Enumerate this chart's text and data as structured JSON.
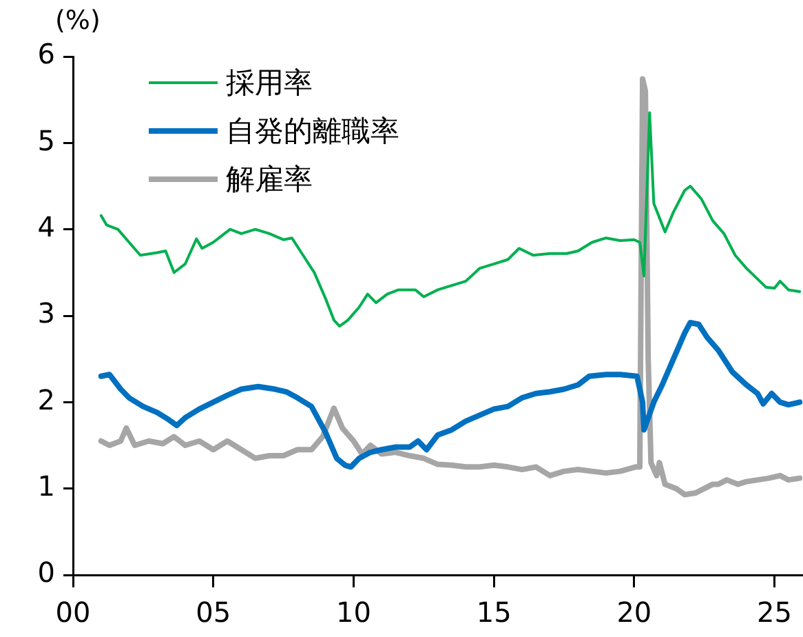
{
  "chart_data": {
    "type": "line",
    "ylabel": "(%)",
    "xlim": [
      0,
      26
    ],
    "xticks": [
      {
        "value": 0,
        "label": "00"
      },
      {
        "value": 5,
        "label": "05"
      },
      {
        "value": 10,
        "label": "10"
      },
      {
        "value": 15,
        "label": "15"
      },
      {
        "value": 20,
        "label": "20"
      },
      {
        "value": 25,
        "label": "25"
      }
    ],
    "ylim": [
      0,
      6
    ],
    "yticks": [
      0,
      1,
      2,
      3,
      4,
      5,
      6
    ],
    "grid": false,
    "legend": "top left",
    "marker": "none",
    "series": [
      {
        "name": "採用率",
        "color": "#00b050",
        "x": [
          1.0,
          1.2,
          1.6,
          2.0,
          2.4,
          3.0,
          3.3,
          3.6,
          4.0,
          4.4,
          4.6,
          5.0,
          5.2,
          5.6,
          6.0,
          6.5,
          7.0,
          7.5,
          7.8,
          8.2,
          8.6,
          9.0,
          9.3,
          9.5,
          9.8,
          10.2,
          10.5,
          10.8,
          11.2,
          11.6,
          12.2,
          12.5,
          13.0,
          13.5,
          14.0,
          14.5,
          15.0,
          15.5,
          15.9,
          16.4,
          17.0,
          17.6,
          18.0,
          18.5,
          19.0,
          19.5,
          20.0,
          20.2,
          20.35,
          20.55,
          20.7,
          21.1,
          21.4,
          21.8,
          22.0,
          22.4,
          22.8,
          23.2,
          23.6,
          24.0,
          24.7,
          25.0,
          25.2,
          25.5,
          25.9
        ],
        "values": [
          4.16,
          4.05,
          4.0,
          3.85,
          3.7,
          3.73,
          3.75,
          3.5,
          3.6,
          3.89,
          3.78,
          3.85,
          3.9,
          4.0,
          3.95,
          4.0,
          3.95,
          3.88,
          3.9,
          3.7,
          3.5,
          3.2,
          2.95,
          2.88,
          2.95,
          3.1,
          3.25,
          3.15,
          3.25,
          3.3,
          3.3,
          3.22,
          3.3,
          3.35,
          3.4,
          3.55,
          3.6,
          3.65,
          3.78,
          3.7,
          3.72,
          3.72,
          3.75,
          3.85,
          3.9,
          3.87,
          3.88,
          3.85,
          3.46,
          5.35,
          4.3,
          3.97,
          4.2,
          4.45,
          4.5,
          4.35,
          4.1,
          3.95,
          3.7,
          3.55,
          3.33,
          3.32,
          3.4,
          3.3,
          3.28
        ]
      },
      {
        "name": "自発的離職率",
        "color": "#0070c0",
        "x": [
          1.0,
          1.3,
          1.7,
          2.0,
          2.5,
          3.0,
          3.4,
          3.7,
          4.0,
          4.5,
          5.0,
          5.5,
          6.0,
          6.6,
          7.2,
          7.6,
          8.0,
          8.5,
          9.0,
          9.4,
          9.7,
          9.9,
          10.2,
          10.6,
          11.0,
          11.5,
          12.0,
          12.3,
          12.6,
          13.0,
          13.5,
          14.0,
          14.5,
          15.0,
          15.5,
          16.0,
          16.5,
          17.0,
          17.5,
          18.0,
          18.4,
          19.0,
          19.5,
          20.1,
          20.3,
          20.35,
          20.7,
          21.0,
          21.4,
          21.8,
          22.0,
          22.3,
          22.6,
          23.0,
          23.5,
          24.0,
          24.4,
          24.6,
          24.9,
          25.2,
          25.5,
          25.9
        ],
        "values": [
          2.3,
          2.32,
          2.15,
          2.05,
          1.95,
          1.88,
          1.8,
          1.73,
          1.82,
          1.92,
          2.0,
          2.08,
          2.15,
          2.18,
          2.15,
          2.12,
          2.05,
          1.95,
          1.65,
          1.35,
          1.27,
          1.25,
          1.35,
          1.42,
          1.45,
          1.48,
          1.48,
          1.55,
          1.45,
          1.62,
          1.68,
          1.78,
          1.85,
          1.92,
          1.95,
          2.05,
          2.1,
          2.12,
          2.15,
          2.2,
          2.3,
          2.32,
          2.32,
          2.3,
          2.0,
          1.68,
          2.0,
          2.2,
          2.5,
          2.8,
          2.92,
          2.9,
          2.75,
          2.6,
          2.35,
          2.2,
          2.1,
          1.98,
          2.1,
          2.0,
          1.97,
          2.0
        ]
      },
      {
        "name": "解雇率",
        "color": "#a6a6a6",
        "x": [
          1.0,
          1.3,
          1.7,
          1.9,
          2.2,
          2.7,
          3.2,
          3.6,
          4.0,
          4.5,
          5.0,
          5.5,
          6.0,
          6.5,
          7.0,
          7.5,
          8.0,
          8.5,
          8.9,
          9.2,
          9.3,
          9.6,
          10.0,
          10.3,
          10.6,
          11.0,
          11.5,
          12.0,
          12.5,
          13.0,
          13.5,
          14.0,
          14.5,
          15.0,
          15.5,
          16.0,
          16.5,
          17.0,
          17.5,
          18.0,
          18.5,
          19.0,
          19.5,
          20.05,
          20.2,
          20.3,
          20.4,
          20.5,
          20.6,
          20.8,
          20.9,
          21.1,
          21.5,
          21.8,
          22.2,
          22.5,
          22.8,
          23.0,
          23.3,
          23.7,
          24.0,
          24.4,
          24.8,
          25.2,
          25.5,
          25.9
        ],
        "values": [
          1.55,
          1.5,
          1.55,
          1.7,
          1.5,
          1.55,
          1.52,
          1.6,
          1.5,
          1.55,
          1.45,
          1.55,
          1.45,
          1.35,
          1.38,
          1.38,
          1.45,
          1.45,
          1.6,
          1.85,
          1.93,
          1.7,
          1.55,
          1.4,
          1.5,
          1.4,
          1.42,
          1.38,
          1.35,
          1.28,
          1.27,
          1.25,
          1.25,
          1.27,
          1.25,
          1.22,
          1.25,
          1.15,
          1.2,
          1.22,
          1.2,
          1.18,
          1.2,
          1.25,
          1.25,
          5.74,
          5.6,
          2.5,
          1.3,
          1.15,
          1.3,
          1.05,
          1.0,
          0.93,
          0.95,
          1.0,
          1.05,
          1.05,
          1.1,
          1.05,
          1.08,
          1.1,
          1.12,
          1.15,
          1.1,
          1.12
        ]
      }
    ]
  }
}
